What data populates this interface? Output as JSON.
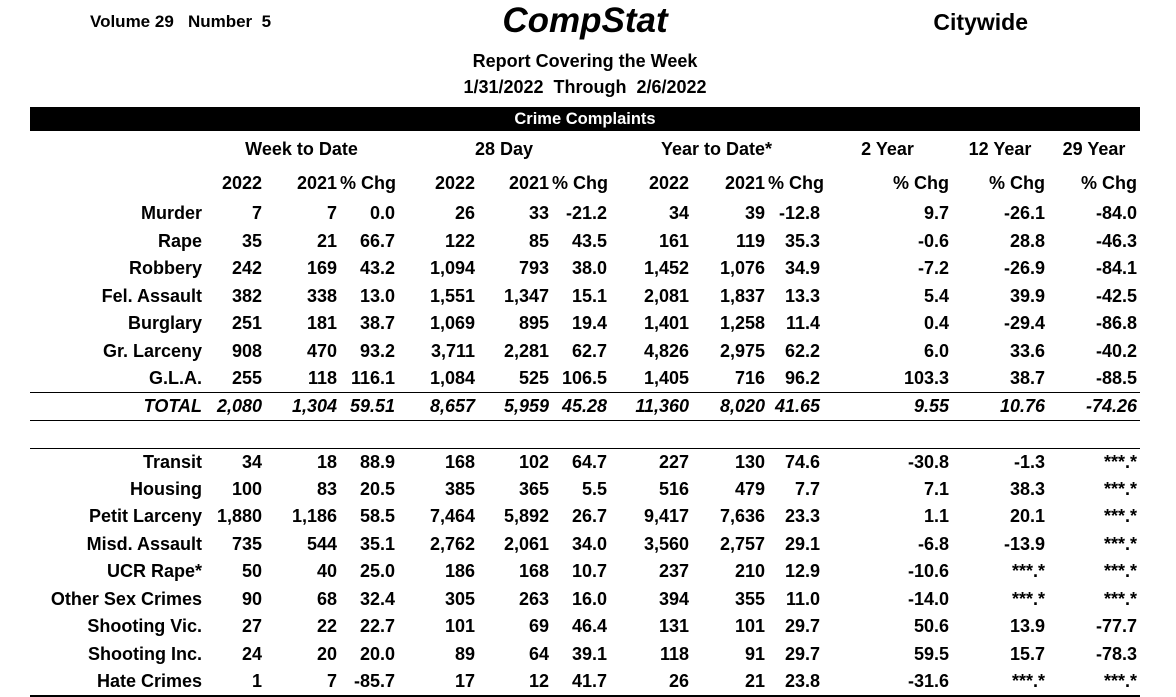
{
  "header": {
    "volume_line": "Volume 29   Number  5",
    "title": "CompStat",
    "region": "Citywide",
    "subtitle": "Report Covering the Week",
    "date_range": "1/31/2022  Through  2/6/2022"
  },
  "banner": {
    "title": "Crime Complaints"
  },
  "table": {
    "group_headers": [
      {
        "label": "Week to Date",
        "span": 3
      },
      {
        "label": "28 Day",
        "span": 3
      },
      {
        "label": "Year to Date*",
        "span": 3
      },
      {
        "label": "2 Year",
        "span": 1
      },
      {
        "label": "12 Year",
        "span": 1
      },
      {
        "label": "29 Year",
        "span": 1
      }
    ],
    "sub_headers": [
      "2022",
      "2021",
      "% Chg",
      "2022",
      "2021",
      "% Chg",
      "2022",
      "2021",
      "% Chg",
      "% Chg",
      "% Chg",
      "% Chg"
    ],
    "upper_rows": [
      {
        "label": "Murder",
        "values": [
          "7",
          "7",
          "0.0",
          "26",
          "33",
          "-21.2",
          "34",
          "39",
          "-12.8",
          "9.7",
          "-26.1",
          "-84.0"
        ]
      },
      {
        "label": "Rape",
        "values": [
          "35",
          "21",
          "66.7",
          "122",
          "85",
          "43.5",
          "161",
          "119",
          "35.3",
          "-0.6",
          "28.8",
          "-46.3"
        ]
      },
      {
        "label": "Robbery",
        "values": [
          "242",
          "169",
          "43.2",
          "1,094",
          "793",
          "38.0",
          "1,452",
          "1,076",
          "34.9",
          "-7.2",
          "-26.9",
          "-84.1"
        ]
      },
      {
        "label": "Fel. Assault",
        "values": [
          "382",
          "338",
          "13.0",
          "1,551",
          "1,347",
          "15.1",
          "2,081",
          "1,837",
          "13.3",
          "5.4",
          "39.9",
          "-42.5"
        ]
      },
      {
        "label": "Burglary",
        "values": [
          "251",
          "181",
          "38.7",
          "1,069",
          "895",
          "19.4",
          "1,401",
          "1,258",
          "11.4",
          "0.4",
          "-29.4",
          "-86.8"
        ]
      },
      {
        "label": "Gr. Larceny",
        "values": [
          "908",
          "470",
          "93.2",
          "3,711",
          "2,281",
          "62.7",
          "4,826",
          "2,975",
          "62.2",
          "6.0",
          "33.6",
          "-40.2"
        ]
      },
      {
        "label": "G.L.A.",
        "values": [
          "255",
          "118",
          "116.1",
          "1,084",
          "525",
          "106.5",
          "1,405",
          "716",
          "96.2",
          "103.3",
          "38.7",
          "-88.5"
        ]
      }
    ],
    "total_row": {
      "label": "TOTAL",
      "values": [
        "2,080",
        "1,304",
        "59.51",
        "8,657",
        "5,959",
        "45.28",
        "11,360",
        "8,020",
        "41.65",
        "9.55",
        "10.76",
        "-74.26"
      ]
    },
    "lower_rows": [
      {
        "label": "Transit",
        "values": [
          "34",
          "18",
          "88.9",
          "168",
          "102",
          "64.7",
          "227",
          "130",
          "74.6",
          "-30.8",
          "-1.3",
          "***.*"
        ]
      },
      {
        "label": "Housing",
        "values": [
          "100",
          "83",
          "20.5",
          "385",
          "365",
          "5.5",
          "516",
          "479",
          "7.7",
          "7.1",
          "38.3",
          "***.*"
        ]
      },
      {
        "label": "Petit Larceny",
        "values": [
          "1,880",
          "1,186",
          "58.5",
          "7,464",
          "5,892",
          "26.7",
          "9,417",
          "7,636",
          "23.3",
          "1.1",
          "20.1",
          "***.*"
        ]
      },
      {
        "label": "Misd. Assault",
        "values": [
          "735",
          "544",
          "35.1",
          "2,762",
          "2,061",
          "34.0",
          "3,560",
          "2,757",
          "29.1",
          "-6.8",
          "-13.9",
          "***.*"
        ]
      },
      {
        "label": "UCR Rape*",
        "values": [
          "50",
          "40",
          "25.0",
          "186",
          "168",
          "10.7",
          "237",
          "210",
          "12.9",
          "-10.6",
          "***.*",
          "***.*"
        ]
      },
      {
        "label": "Other Sex Crimes",
        "values": [
          "90",
          "68",
          "32.4",
          "305",
          "263",
          "16.0",
          "394",
          "355",
          "11.0",
          "-14.0",
          "***.*",
          "***.*"
        ]
      },
      {
        "label": "Shooting Vic.",
        "values": [
          "27",
          "22",
          "22.7",
          "101",
          "69",
          "46.4",
          "131",
          "101",
          "29.7",
          "50.6",
          "13.9",
          "-77.7"
        ]
      },
      {
        "label": "Shooting Inc.",
        "values": [
          "24",
          "20",
          "20.0",
          "89",
          "64",
          "39.1",
          "118",
          "91",
          "29.7",
          "59.5",
          "15.7",
          "-78.3"
        ]
      },
      {
        "label": "Hate Crimes",
        "values": [
          "1",
          "7",
          "-85.7",
          "17",
          "12",
          "41.7",
          "26",
          "21",
          "23.8",
          "-31.6",
          "***.*",
          "***.*"
        ]
      }
    ]
  }
}
